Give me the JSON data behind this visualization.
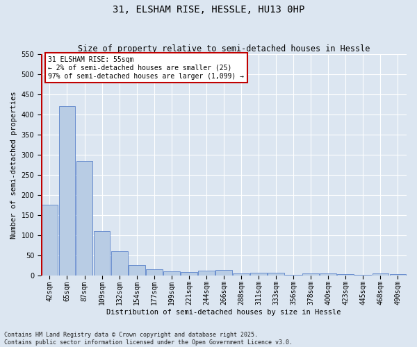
{
  "title": "31, ELSHAM RISE, HESSLE, HU13 0HP",
  "subtitle": "Size of property relative to semi-detached houses in Hessle",
  "xlabel": "Distribution of semi-detached houses by size in Hessle",
  "ylabel": "Number of semi-detached properties",
  "categories": [
    "42sqm",
    "65sqm",
    "87sqm",
    "109sqm",
    "132sqm",
    "154sqm",
    "177sqm",
    "199sqm",
    "221sqm",
    "244sqm",
    "266sqm",
    "288sqm",
    "311sqm",
    "333sqm",
    "356sqm",
    "378sqm",
    "400sqm",
    "423sqm",
    "445sqm",
    "468sqm",
    "490sqm"
  ],
  "values": [
    175,
    420,
    285,
    110,
    60,
    25,
    15,
    10,
    8,
    12,
    13,
    5,
    6,
    7,
    1,
    5,
    5,
    2,
    1,
    4,
    3
  ],
  "bar_color": "#b8cce4",
  "bar_edge_color": "#4472c4",
  "highlight_color": "#c00000",
  "annotation_line1": "31 ELSHAM RISE: 55sqm",
  "annotation_line2": "← 2% of semi-detached houses are smaller (25)",
  "annotation_line3": "97% of semi-detached houses are larger (1,099) →",
  "annotation_box_color": "#ffffff",
  "annotation_box_edge": "#c00000",
  "ylim": [
    0,
    550
  ],
  "yticks": [
    0,
    50,
    100,
    150,
    200,
    250,
    300,
    350,
    400,
    450,
    500,
    550
  ],
  "background_color": "#dce6f1",
  "grid_color": "#ffffff",
  "footer": "Contains HM Land Registry data © Crown copyright and database right 2025.\nContains public sector information licensed under the Open Government Licence v3.0.",
  "title_fontsize": 10,
  "subtitle_fontsize": 8.5,
  "axis_label_fontsize": 7.5,
  "tick_fontsize": 7,
  "annotation_fontsize": 7,
  "footer_fontsize": 6
}
